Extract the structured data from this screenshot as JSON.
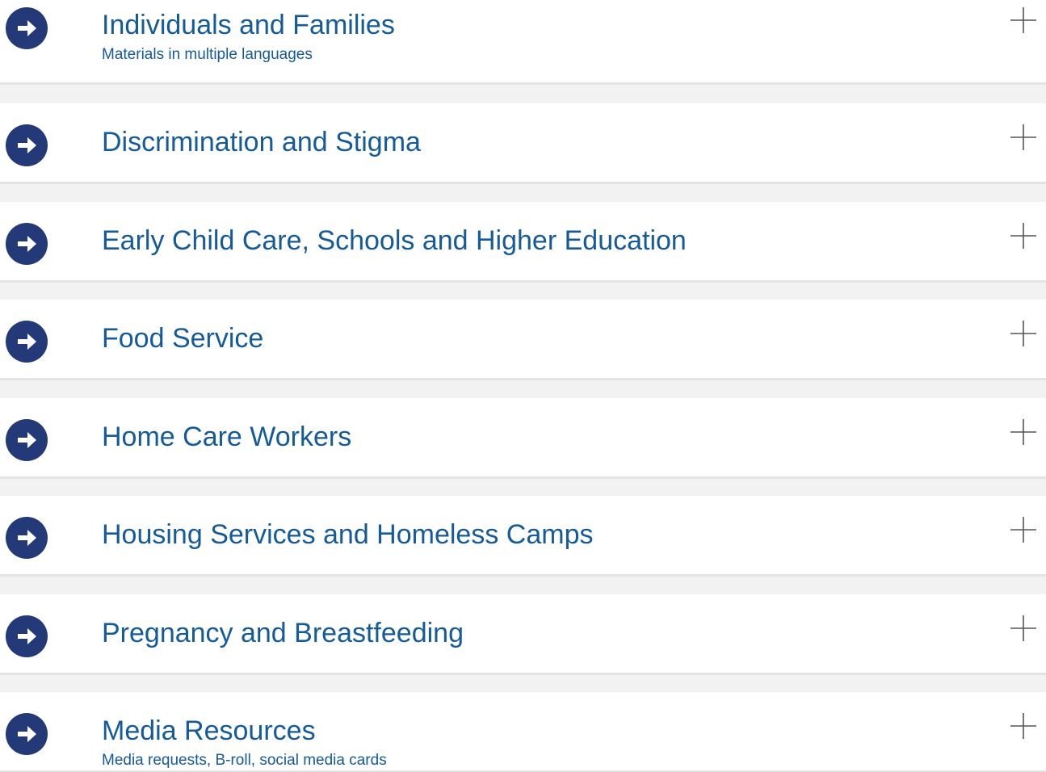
{
  "items": [
    {
      "title": "Individuals and Families",
      "subtitle": "Materials in multiple languages"
    },
    {
      "title": "Discrimination and Stigma"
    },
    {
      "title": "Early Child Care, Schools and Higher Education"
    },
    {
      "title": "Food Service"
    },
    {
      "title": "Home Care Workers"
    },
    {
      "title": "Housing Services and Homeless Camps"
    },
    {
      "title": "Pregnancy and Breastfeeding"
    },
    {
      "title": "Media Resources",
      "subtitle": "Media requests, B-roll, social media cards"
    }
  ]
}
